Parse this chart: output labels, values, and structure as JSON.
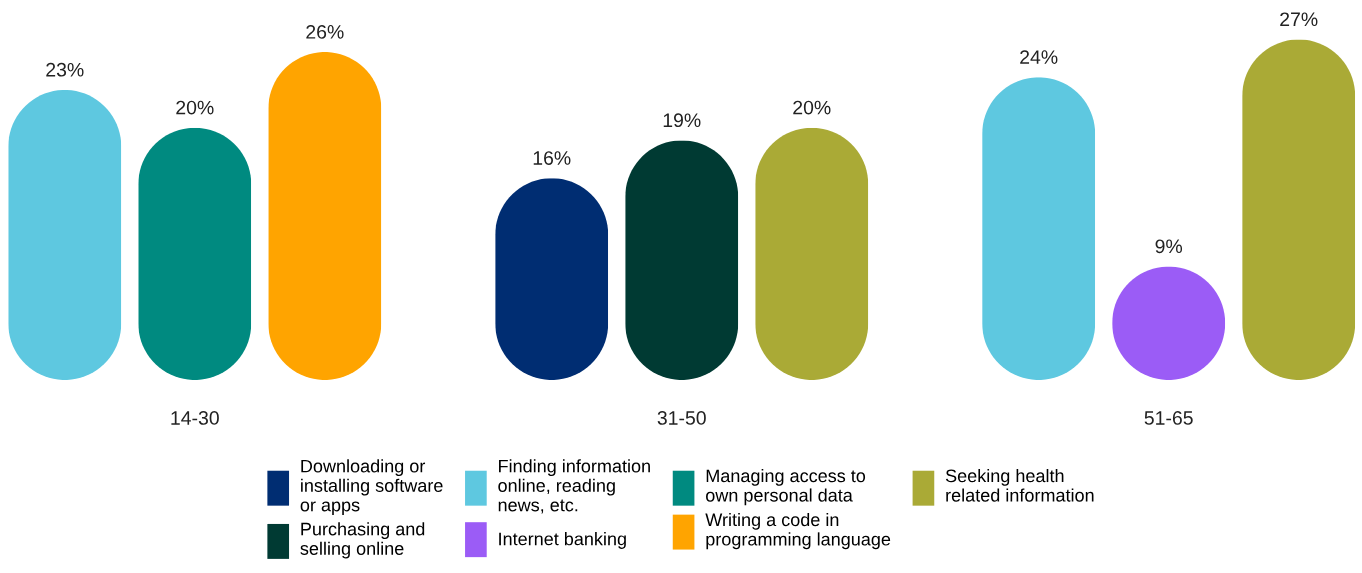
{
  "chart_data": {
    "type": "bar",
    "categories": [
      "14-30",
      "31-50",
      "51-65"
    ],
    "legend": "bottom",
    "grid": false,
    "series": [
      {
        "name": "Downloading or\ninstalling software\nor apps",
        "color": "#002d72",
        "values": [
          null,
          16,
          null
        ],
        "value_labels": [
          null,
          "16%",
          null
        ]
      },
      {
        "name": "Purchasing and\nselling online",
        "color": "#003a33",
        "values": [
          null,
          19,
          null
        ],
        "value_labels": [
          null,
          "19%",
          null
        ]
      },
      {
        "name": "Finding information\nonline, reading\nnews, etc.",
        "color": "#5ec8e0",
        "values": [
          23,
          null,
          24
        ],
        "value_labels": [
          "23%",
          null,
          "24%"
        ]
      },
      {
        "name": "Internet banking",
        "color": "#9b5cf6",
        "values": [
          null,
          null,
          9
        ],
        "value_labels": [
          null,
          null,
          "9%"
        ]
      },
      {
        "name": "Managing access to\nown personal data",
        "color": "#008a80",
        "values": [
          20,
          null,
          null
        ],
        "value_labels": [
          "20%",
          null,
          null
        ]
      },
      {
        "name": "Writing a code in\nprogramming language",
        "color": "#ffa400",
        "values": [
          26,
          null,
          null
        ],
        "value_labels": [
          "26%",
          null,
          null
        ]
      },
      {
        "name": "Seeking health\nrelated information",
        "color": "#aaaa36",
        "values": [
          null,
          20,
          27
        ],
        "value_labels": [
          null,
          "20%",
          "27%"
        ]
      }
    ]
  }
}
